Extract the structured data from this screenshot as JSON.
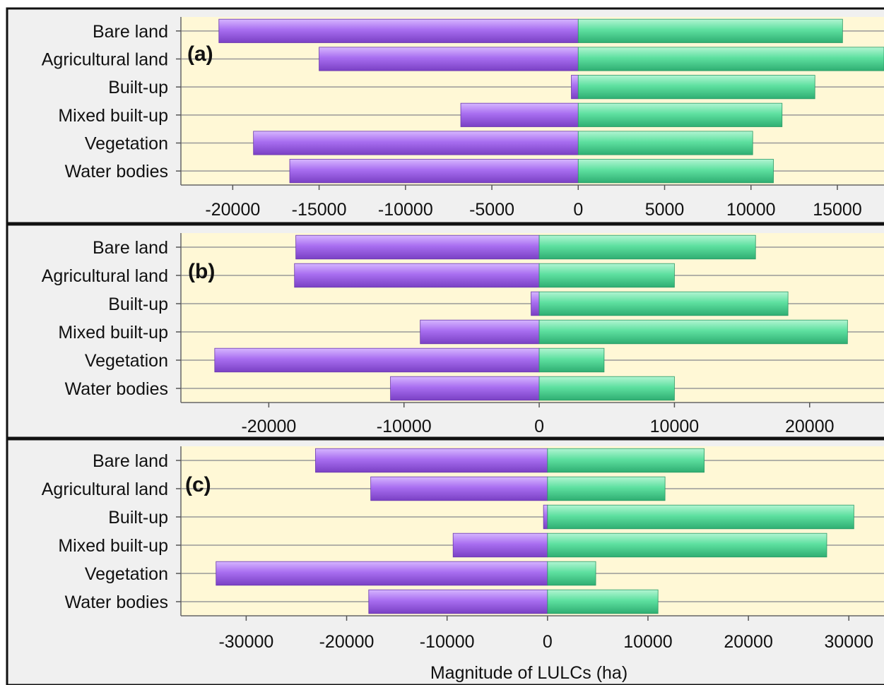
{
  "colors": {
    "panel_bg": "#f0f0f0",
    "plot_bg": "#fff8d6",
    "loss": "#a86ef0",
    "gain": "#5ee0a0",
    "grid": "#999999",
    "border": "#111111"
  },
  "chart_data": [
    {
      "type": "bar",
      "orientation": "horizontal",
      "stacked": "diverging",
      "panel_label": "(a)",
      "categories": [
        "Bare land",
        "Agricultural land",
        "Built-up",
        "Mixed built-up",
        "Vegetation",
        "Water bodies"
      ],
      "series": [
        {
          "values": [
            -20800,
            -15000,
            -400,
            -6800,
            -18800,
            -16700
          ]
        },
        {
          "values": [
            15300,
            17700,
            13700,
            11800,
            10100,
            11300
          ]
        }
      ],
      "xlim": [
        -23000,
        17700
      ],
      "xticks": [
        -20000,
        -15000,
        -10000,
        -5000,
        0,
        5000,
        10000,
        15000
      ],
      "xtick_labels": [
        "-20000",
        "-15000",
        "-10000",
        "-5000",
        "0",
        "5000",
        "10000",
        "15000"
      ],
      "xlabel": "",
      "ylabel": "",
      "grid": "horizontal",
      "legend": "none"
    },
    {
      "type": "bar",
      "orientation": "horizontal",
      "stacked": "diverging",
      "panel_label": "(b)",
      "categories": [
        "Bare land",
        "Agricultural land",
        "Built-up",
        "Mixed built-up",
        "Vegetation",
        "Water bodies"
      ],
      "series": [
        {
          "values": [
            -18000,
            -18100,
            -600,
            -8800,
            -24000,
            -11000
          ]
        },
        {
          "values": [
            16000,
            10000,
            18400,
            22800,
            4800,
            10000
          ]
        }
      ],
      "xlim": [
        -26500,
        25500
      ],
      "xticks": [
        -20000,
        -10000,
        0,
        10000,
        20000
      ],
      "xtick_labels": [
        "-20000",
        "-10000",
        "0",
        "10000",
        "20000"
      ],
      "xlabel": "",
      "ylabel": "",
      "grid": "horizontal",
      "legend": "none"
    },
    {
      "type": "bar",
      "orientation": "horizontal",
      "stacked": "diverging",
      "panel_label": "(c)",
      "categories": [
        "Bare land",
        "Agricultural land",
        "Built-up",
        "Mixed built-up",
        "Vegetation",
        "Water bodies"
      ],
      "series": [
        {
          "values": [
            -23100,
            -17600,
            -400,
            -9400,
            -33000,
            -17800
          ]
        },
        {
          "values": [
            15600,
            11700,
            30500,
            27800,
            4800,
            11000
          ]
        }
      ],
      "xlim": [
        -36500,
        33500
      ],
      "xticks": [
        -30000,
        -20000,
        -10000,
        0,
        10000,
        20000,
        30000
      ],
      "xtick_labels": [
        "-30000",
        "-20000",
        "-10000",
        "0",
        "10000",
        "20000",
        "30000"
      ],
      "xlabel": "Magnitude of LULCs (ha)",
      "ylabel": "",
      "grid": "horizontal",
      "legend": "none"
    }
  ]
}
